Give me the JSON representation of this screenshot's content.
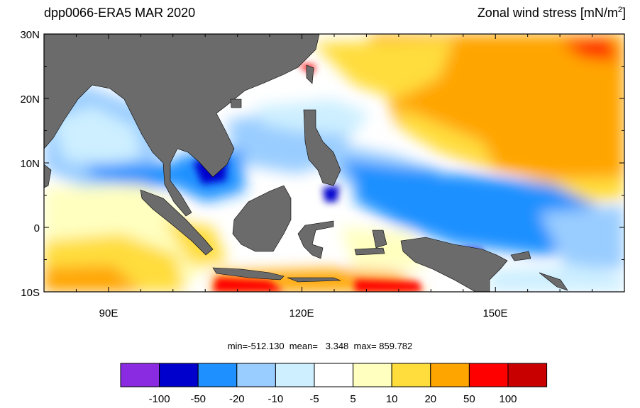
{
  "header": {
    "left_title": "dpp0066-ERA5  MAR 2020",
    "right_title_main": "Zonal wind stress [mN/m",
    "right_title_sup": "2",
    "right_title_end": "]"
  },
  "map": {
    "region": "Maritime Continent / Western Pacific",
    "lon_range": [
      80,
      170
    ],
    "lat_range": [
      -10,
      30
    ],
    "lat_labels": [
      {
        "lat": 30,
        "text": "30N"
      },
      {
        "lat": 20,
        "text": "20N"
      },
      {
        "lat": 10,
        "text": "10N"
      },
      {
        "lat": 0,
        "text": "0"
      },
      {
        "lat": -10,
        "text": "10S"
      }
    ],
    "lon_labels": [
      {
        "lon": 90,
        "text": "90E"
      },
      {
        "lon": 120,
        "text": "120E"
      },
      {
        "lon": 150,
        "text": "150E"
      }
    ],
    "land_color": "#6b6b6b"
  },
  "stats": {
    "text": "min=-512.130  mean=   3.348  max= 859.782"
  },
  "colorbar": {
    "colors": [
      "#8a2be2",
      "#0000cd",
      "#1e90ff",
      "#9acdff",
      "#cdefff",
      "#ffffff",
      "#ffffc0",
      "#ffdd3c",
      "#ffa500",
      "#ff0000",
      "#c80000"
    ],
    "labels": [
      "-100",
      "-50",
      "-20",
      "-10",
      "-5",
      "5",
      "10",
      "20",
      "50",
      "100"
    ]
  }
}
